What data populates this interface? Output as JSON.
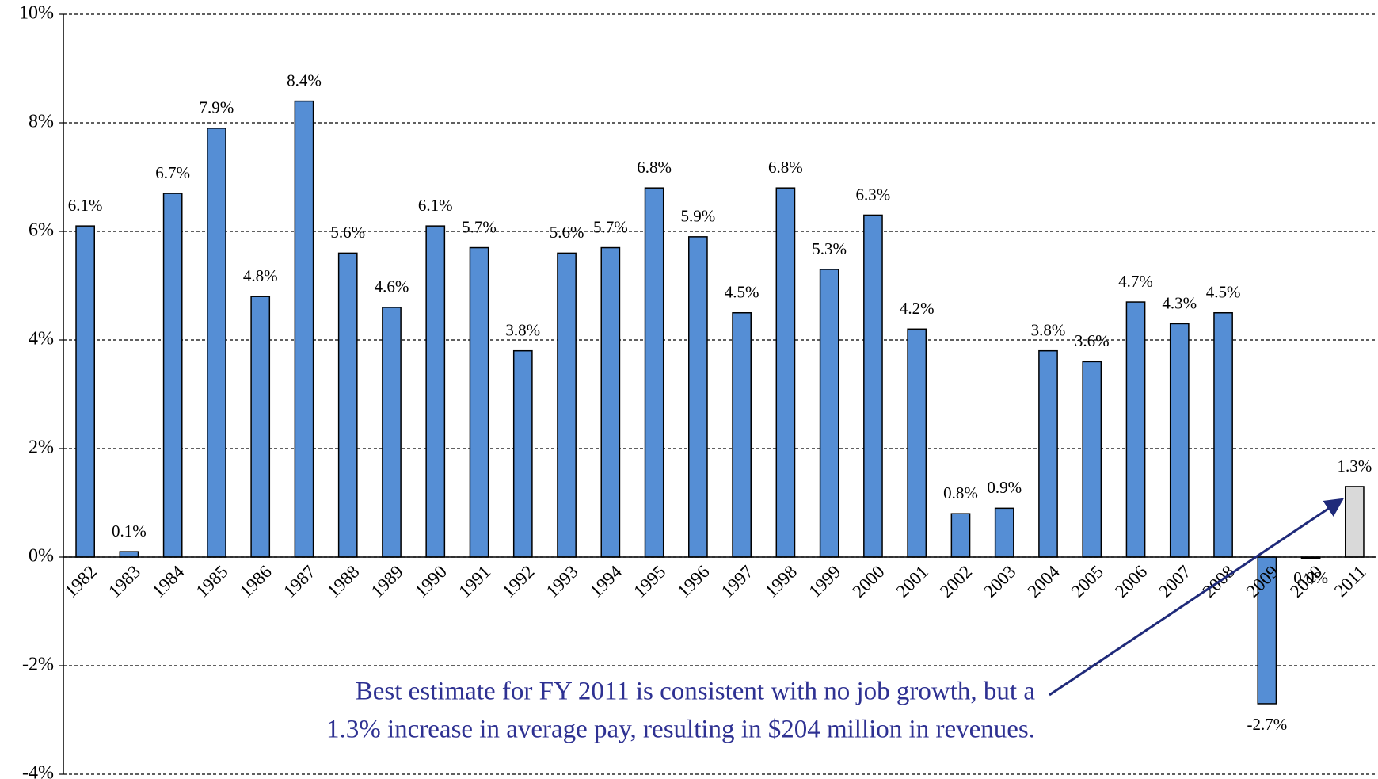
{
  "chart_data": {
    "type": "bar",
    "categories": [
      "1982",
      "1983",
      "1984",
      "1985",
      "1986",
      "1987",
      "1988",
      "1989",
      "1990",
      "1991",
      "1992",
      "1993",
      "1994",
      "1995",
      "1996",
      "1997",
      "1998",
      "1999",
      "2000",
      "2001",
      "2002",
      "2003",
      "2004",
      "2005",
      "2006",
      "2007",
      "2008",
      "2009",
      "2010",
      "2011"
    ],
    "values": [
      6.1,
      0.1,
      6.7,
      7.9,
      4.8,
      8.4,
      5.6,
      4.6,
      6.1,
      5.7,
      3.8,
      5.6,
      5.7,
      6.8,
      5.9,
      4.5,
      6.8,
      5.3,
      6.3,
      4.2,
      0.8,
      0.9,
      3.8,
      3.6,
      4.7,
      4.3,
      4.5,
      -2.7,
      0.0,
      1.3
    ],
    "value_labels": [
      "6.1%",
      "0.1%",
      "6.7%",
      "7.9%",
      "4.8%",
      "8.4%",
      "5.6%",
      "4.6%",
      "6.1%",
      "5.7%",
      "3.8%",
      "5.6%",
      "5.7%",
      "6.8%",
      "5.9%",
      "4.5%",
      "6.8%",
      "5.3%",
      "6.3%",
      "4.2%",
      "0.8%",
      "0.9%",
      "3.8%",
      "3.6%",
      "4.7%",
      "4.3%",
      "4.5%",
      "-2.7%",
      "0.0%",
      "1.3%"
    ],
    "colors": [
      "#558ed5",
      "#558ed5",
      "#558ed5",
      "#558ed5",
      "#558ed5",
      "#558ed5",
      "#558ed5",
      "#558ed5",
      "#558ed5",
      "#558ed5",
      "#558ed5",
      "#558ed5",
      "#558ed5",
      "#558ed5",
      "#558ed5",
      "#558ed5",
      "#558ed5",
      "#558ed5",
      "#558ed5",
      "#558ed5",
      "#558ed5",
      "#558ed5",
      "#558ed5",
      "#558ed5",
      "#558ed5",
      "#558ed5",
      "#558ed5",
      "#558ed5",
      "#558ed5",
      "#d9d9d9"
    ],
    "ylim": [
      -4,
      10
    ],
    "yticks": [
      {
        "value": -4,
        "label": "-4%"
      },
      {
        "value": -2,
        "label": "-2%"
      },
      {
        "value": 0,
        "label": "0%"
      },
      {
        "value": 2,
        "label": "2%"
      },
      {
        "value": 4,
        "label": "4%"
      },
      {
        "value": 6,
        "label": "6%"
      },
      {
        "value": 8,
        "label": "8%"
      },
      {
        "value": 10,
        "label": "10%"
      }
    ],
    "grid": true,
    "annotation": [
      "Best estimate for FY 2011 is consistent with no job growth, but a",
      "1.3% increase in average pay, resulting in $204 million in revenues."
    ]
  }
}
